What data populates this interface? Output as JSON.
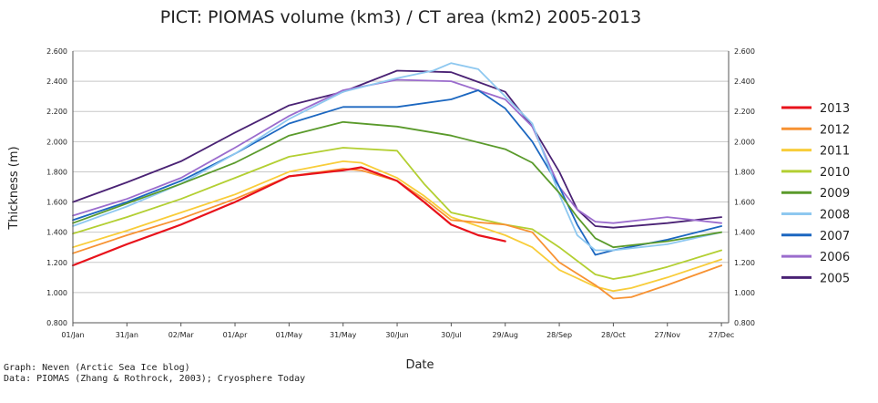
{
  "chart_data": {
    "type": "line",
    "title": "PICT: PIOMAS volume (km3) / CT area (km2) 2005-2013",
    "xlabel": "Date",
    "ylabel": "Thickness (m)",
    "ylim": [
      0.8,
      2.6
    ],
    "y_ticks": [
      "0.800",
      "1.000",
      "1.200",
      "1.400",
      "1.600",
      "1.800",
      "2.000",
      "2.200",
      "2.400",
      "2.600"
    ],
    "x_tick_days": [
      1,
      31,
      61,
      91,
      121,
      151,
      181,
      211,
      241,
      271,
      301,
      331,
      361
    ],
    "x_ticks": [
      "01/Jan",
      "31/Jan",
      "02/Mar",
      "01/Apr",
      "01/May",
      "31/May",
      "30/Jun",
      "30/Jul",
      "29/Aug",
      "28/Sep",
      "28/Oct",
      "27/Nov",
      "27/Dec"
    ],
    "xlim_days": [
      1,
      365
    ],
    "grid": true,
    "legend": "right",
    "series": [
      {
        "name": "2013",
        "color": "#e8121b",
        "x": [
          1,
          31,
          61,
          91,
          121,
          151,
          161,
          181,
          196,
          211,
          226,
          241
        ],
        "values": [
          1.18,
          1.32,
          1.45,
          1.6,
          1.77,
          1.81,
          1.83,
          1.74,
          1.6,
          1.45,
          1.38,
          1.34
        ]
      },
      {
        "name": "2012",
        "color": "#f79232",
        "x": [
          1,
          31,
          61,
          91,
          121,
          151,
          161,
          181,
          196,
          211,
          241,
          256,
          271,
          291,
          301,
          311,
          331,
          361
        ],
        "values": [
          1.26,
          1.38,
          1.49,
          1.62,
          1.77,
          1.82,
          1.81,
          1.74,
          1.62,
          1.48,
          1.45,
          1.4,
          1.2,
          1.05,
          0.96,
          0.97,
          1.05,
          1.18
        ]
      },
      {
        "name": "2011",
        "color": "#f8cd3a",
        "x": [
          1,
          31,
          61,
          91,
          121,
          151,
          161,
          181,
          196,
          211,
          241,
          256,
          271,
          291,
          301,
          311,
          331,
          361
        ],
        "values": [
          1.3,
          1.41,
          1.53,
          1.65,
          1.8,
          1.87,
          1.86,
          1.76,
          1.64,
          1.5,
          1.38,
          1.3,
          1.15,
          1.04,
          1.01,
          1.03,
          1.1,
          1.22
        ]
      },
      {
        "name": "2010",
        "color": "#b3cf32",
        "x": [
          1,
          31,
          61,
          91,
          121,
          151,
          181,
          196,
          211,
          241,
          256,
          271,
          291,
          301,
          311,
          331,
          361
        ],
        "values": [
          1.39,
          1.5,
          1.62,
          1.76,
          1.9,
          1.96,
          1.94,
          1.72,
          1.53,
          1.45,
          1.42,
          1.3,
          1.12,
          1.09,
          1.11,
          1.17,
          1.28
        ]
      },
      {
        "name": "2009",
        "color": "#5a9a2b",
        "x": [
          1,
          31,
          61,
          91,
          121,
          151,
          181,
          211,
          241,
          256,
          271,
          281,
          291,
          301,
          331,
          361
        ],
        "values": [
          1.46,
          1.59,
          1.72,
          1.86,
          2.04,
          2.13,
          2.1,
          2.04,
          1.95,
          1.86,
          1.66,
          1.5,
          1.36,
          1.3,
          1.34,
          1.4
        ]
      },
      {
        "name": "2008",
        "color": "#8ec8f0",
        "x": [
          1,
          31,
          61,
          91,
          121,
          151,
          181,
          201,
          211,
          226,
          241,
          256,
          271,
          281,
          291,
          301,
          331,
          361
        ],
        "values": [
          1.44,
          1.57,
          1.72,
          1.92,
          2.15,
          2.33,
          2.42,
          2.47,
          2.52,
          2.48,
          2.3,
          2.12,
          1.65,
          1.38,
          1.28,
          1.28,
          1.32,
          1.4
        ]
      },
      {
        "name": "2007",
        "color": "#1c67c0",
        "x": [
          1,
          31,
          61,
          91,
          121,
          151,
          181,
          211,
          226,
          241,
          256,
          271,
          281,
          291,
          301,
          331,
          361
        ],
        "values": [
          1.48,
          1.6,
          1.74,
          1.92,
          2.12,
          2.23,
          2.23,
          2.28,
          2.34,
          2.22,
          2.0,
          1.7,
          1.45,
          1.25,
          1.28,
          1.35,
          1.44
        ]
      },
      {
        "name": "2006",
        "color": "#9b6ccd",
        "x": [
          1,
          31,
          61,
          91,
          121,
          151,
          181,
          211,
          241,
          256,
          271,
          281,
          291,
          301,
          331,
          361
        ],
        "values": [
          1.51,
          1.62,
          1.76,
          1.96,
          2.17,
          2.34,
          2.41,
          2.4,
          2.28,
          2.1,
          1.7,
          1.55,
          1.47,
          1.46,
          1.5,
          1.46
        ]
      },
      {
        "name": "2005",
        "color": "#4a2274",
        "x": [
          1,
          31,
          61,
          91,
          121,
          151,
          181,
          211,
          241,
          256,
          271,
          281,
          291,
          301,
          331,
          361
        ],
        "values": [
          1.6,
          1.73,
          1.87,
          2.06,
          2.24,
          2.33,
          2.47,
          2.46,
          2.33,
          2.1,
          1.8,
          1.55,
          1.44,
          1.43,
          1.46,
          1.5
        ]
      }
    ]
  },
  "credits": {
    "line1": "Graph: Neven (Arctic Sea Ice blog)",
    "line2": "Data: PIOMAS (Zhang & Rothrock, 2003); Cryosphere Today"
  }
}
